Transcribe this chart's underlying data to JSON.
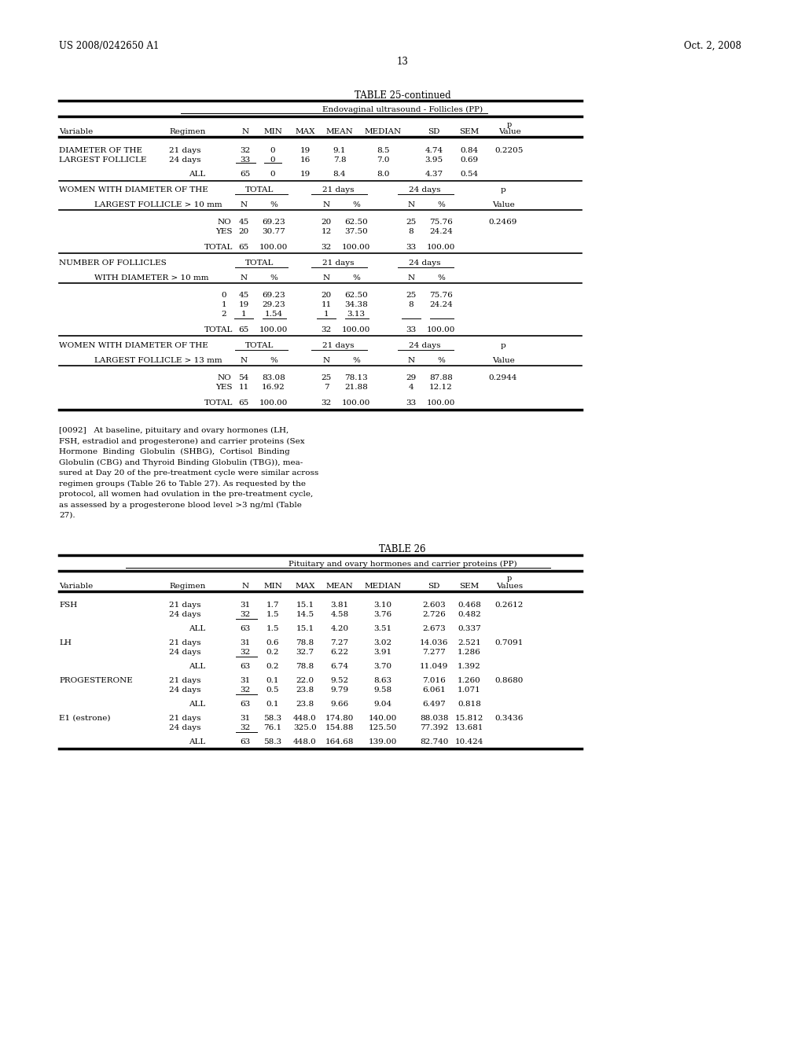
{
  "header_left": "US 2008/0242650 A1",
  "header_right": "Oct. 2, 2008",
  "page_num": "13",
  "bg_color": "#ffffff",
  "text_color": "#000000",
  "table25_title": "TABLE 25-continued",
  "table25_subtitle": "Endovaginal ultrasound - Follicles (PP)",
  "table26_title": "TABLE 26",
  "table26_subtitle": "Pituitary and ovary hormones and carrier proteins (PP)",
  "col_x": {
    "variable": 75,
    "regimen": 215,
    "N": 310,
    "MIN": 345,
    "MAX": 385,
    "MEAN": 428,
    "MEDIAN": 480,
    "SD": 545,
    "SEM": 588,
    "pvalue": 638
  }
}
